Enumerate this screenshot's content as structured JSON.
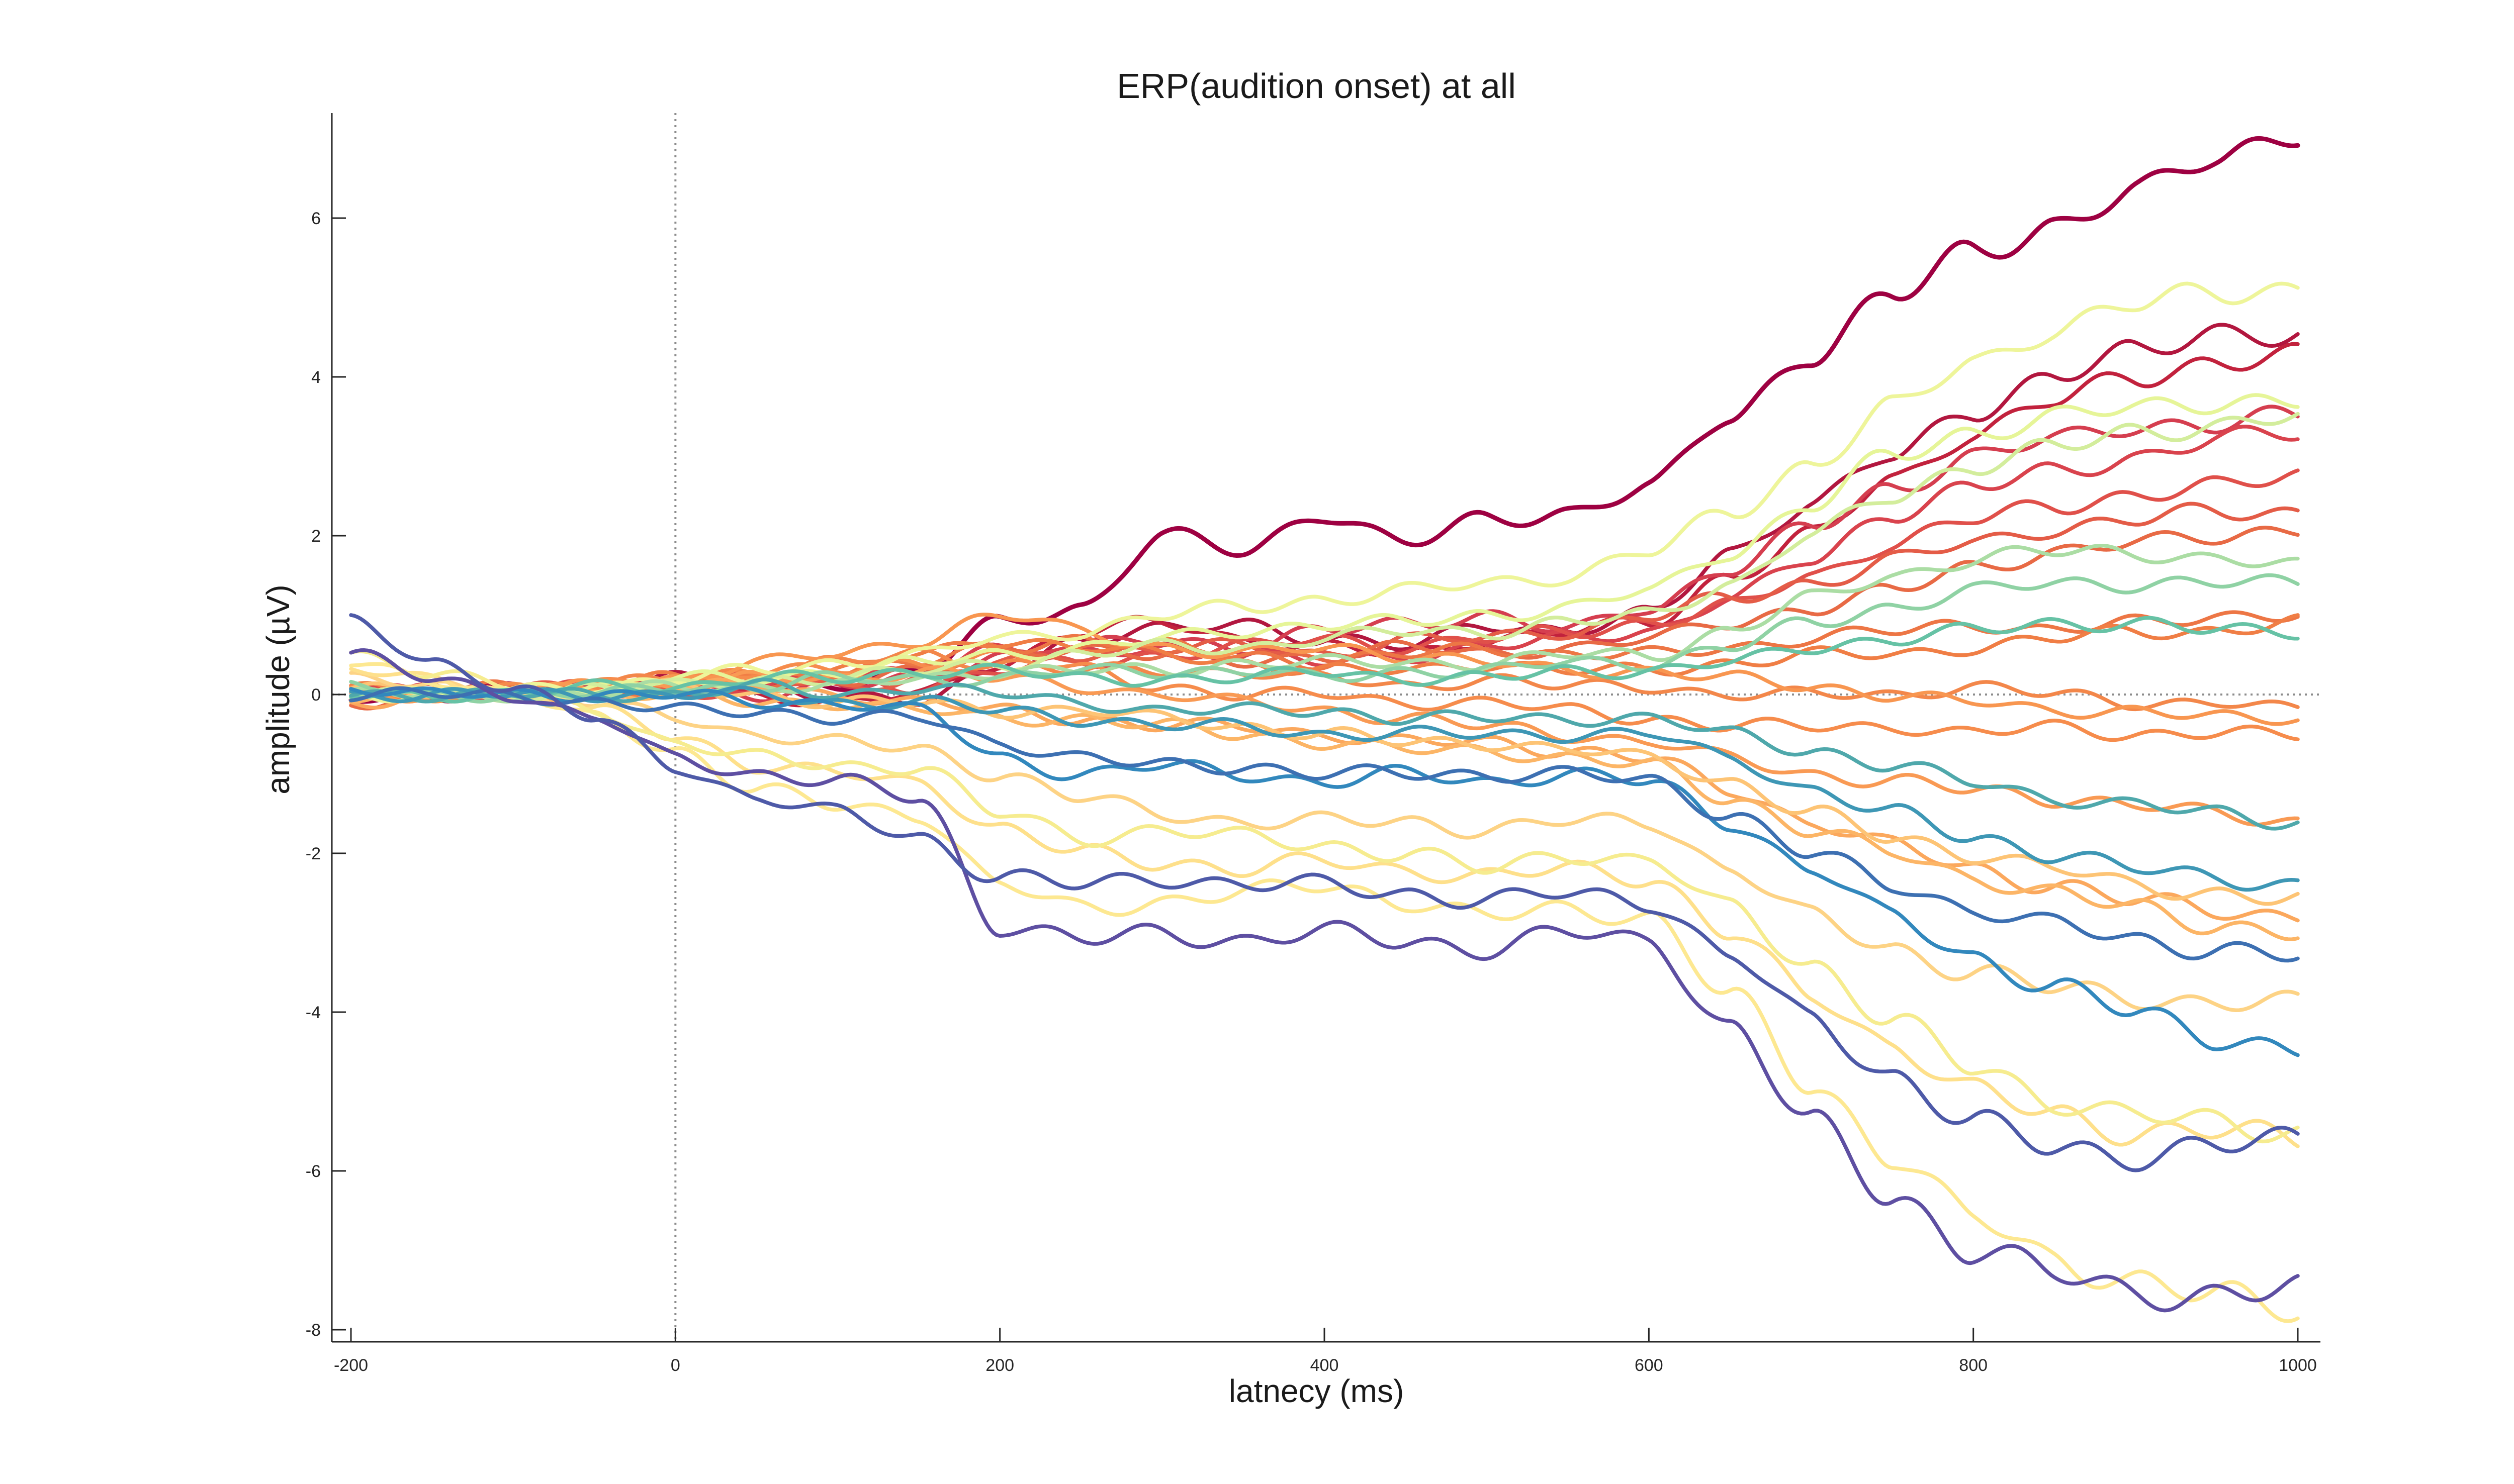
{
  "chart_data": {
    "type": "line",
    "title": "ERP(audition onset) at all",
    "xlabel": "latnecy (ms)",
    "ylabel": "amplitude (µV)",
    "xlim": [
      -200,
      1000
    ],
    "ylim": [
      -8,
      7.3
    ],
    "xticks": [
      -200,
      0,
      200,
      400,
      600,
      800,
      1000
    ],
    "yticks": [
      -8,
      -6,
      -4,
      -2,
      0,
      2,
      4,
      6
    ],
    "grid": false,
    "legend": "none",
    "reference_lines": {
      "x": 0,
      "y": 0,
      "style": "dotted",
      "color": "#8c8c8c"
    },
    "x": [
      -200,
      -150,
      -100,
      -50,
      0,
      50,
      100,
      150,
      200,
      250,
      300,
      350,
      400,
      450,
      500,
      550,
      600,
      650,
      700,
      750,
      800,
      850,
      900,
      950,
      1000
    ],
    "series": [
      {
        "color": "#9e0142",
        "values": [
          0.0,
          -0.05,
          0.05,
          0.1,
          0.2,
          0.1,
          0.15,
          0.3,
          0.9,
          1.1,
          2.0,
          1.8,
          2.3,
          1.9,
          2.2,
          2.3,
          2.6,
          3.5,
          4.3,
          5.0,
          5.6,
          5.9,
          6.3,
          6.8,
          7.1
        ]
      },
      {
        "color": "#b2173f",
        "values": [
          0.0,
          0.0,
          0.05,
          0.1,
          0.2,
          0.1,
          0.0,
          -0.1,
          0.3,
          0.7,
          0.8,
          0.9,
          0.7,
          0.6,
          0.9,
          0.8,
          1.0,
          1.8,
          2.4,
          3.0,
          3.6,
          4.0,
          4.3,
          4.6,
          4.5
        ]
      },
      {
        "color": "#c2223d",
        "values": [
          -0.1,
          0.0,
          0.0,
          0.1,
          0.1,
          0.0,
          -0.1,
          0.0,
          0.4,
          0.8,
          0.9,
          0.7,
          0.6,
          0.5,
          0.7,
          0.8,
          0.9,
          1.5,
          2.0,
          2.7,
          3.3,
          3.7,
          4.0,
          4.2,
          4.25
        ]
      },
      {
        "color": "#d53e4f",
        "values": [
          0.0,
          0.05,
          0.0,
          0.05,
          0.1,
          0.0,
          0.1,
          0.2,
          0.5,
          0.6,
          0.7,
          0.6,
          0.8,
          0.9,
          1.0,
          0.8,
          1.1,
          1.6,
          2.1,
          2.6,
          3.0,
          3.2,
          3.4,
          3.4,
          3.5
        ]
      },
      {
        "color": "#d9434d",
        "values": [
          0.1,
          0.0,
          0.05,
          0.0,
          0.2,
          0.1,
          0.2,
          0.3,
          0.6,
          0.5,
          0.6,
          0.5,
          0.4,
          0.5,
          0.6,
          0.7,
          0.8,
          1.2,
          1.7,
          2.3,
          2.6,
          2.8,
          3.0,
          3.2,
          3.3
        ]
      },
      {
        "color": "#e0504a",
        "values": [
          0.0,
          0.0,
          0.0,
          0.1,
          0.0,
          0.1,
          0.2,
          0.1,
          0.3,
          0.4,
          0.5,
          0.6,
          0.7,
          0.6,
          0.7,
          0.8,
          0.9,
          1.1,
          1.5,
          1.9,
          2.2,
          2.4,
          2.5,
          2.6,
          2.8
        ]
      },
      {
        "color": "#e45c47",
        "values": [
          0.0,
          0.0,
          0.05,
          0.1,
          0.1,
          0.2,
          0.1,
          0.2,
          0.4,
          0.5,
          0.6,
          0.6,
          0.5,
          0.7,
          0.7,
          0.8,
          1.0,
          1.2,
          1.4,
          1.7,
          1.9,
          2.1,
          2.2,
          2.3,
          2.3
        ]
      },
      {
        "color": "#e86a45",
        "values": [
          -0.1,
          0.0,
          0.0,
          0.1,
          0.1,
          0.1,
          0.2,
          0.3,
          0.5,
          0.6,
          0.5,
          0.4,
          0.5,
          0.6,
          0.5,
          0.6,
          0.7,
          0.9,
          1.1,
          1.3,
          1.6,
          1.8,
          1.9,
          2.0,
          2.1
        ]
      },
      {
        "color": "#ed7645",
        "values": [
          0.0,
          0.0,
          0.1,
          0.0,
          0.1,
          0.2,
          0.3,
          0.4,
          0.6,
          0.7,
          0.6,
          0.5,
          0.4,
          0.5,
          0.6,
          0.5,
          0.5,
          0.6,
          0.7,
          0.8,
          0.9,
          0.8,
          0.9,
          1.0,
          1.0
        ]
      },
      {
        "color": "#f07e45",
        "values": [
          0.1,
          0.0,
          0.0,
          0.1,
          0.2,
          0.2,
          0.3,
          0.5,
          0.7,
          0.6,
          0.5,
          0.4,
          0.3,
          0.3,
          0.4,
          0.3,
          0.3,
          0.4,
          0.5,
          0.5,
          0.6,
          0.7,
          0.8,
          0.8,
          0.9
        ]
      },
      {
        "color": "#f3874a",
        "values": [
          0.0,
          0.0,
          0.1,
          0.1,
          0.2,
          0.3,
          0.4,
          0.5,
          0.4,
          0.3,
          0.3,
          0.3,
          0.2,
          0.1,
          0.2,
          0.1,
          0.1,
          0.0,
          0.0,
          0.0,
          0.1,
          0.0,
          -0.1,
          -0.1,
          -0.2
        ]
      },
      {
        "color": "#f68c4c",
        "values": [
          0.0,
          0.0,
          0.1,
          0.1,
          0.2,
          0.3,
          0.3,
          0.4,
          0.5,
          0.3,
          0.1,
          0.0,
          0.0,
          -0.1,
          -0.1,
          -0.2,
          -0.3,
          -0.4,
          -0.4,
          -0.4,
          -0.5,
          -0.4,
          -0.5,
          -0.5,
          -0.5
        ]
      },
      {
        "color": "#f89650",
        "values": [
          0.1,
          0.0,
          0.0,
          0.1,
          0.2,
          0.4,
          0.5,
          0.7,
          1.0,
          0.8,
          0.6,
          0.5,
          0.6,
          0.5,
          0.4,
          0.3,
          0.3,
          0.2,
          0.1,
          0.0,
          -0.1,
          -0.2,
          -0.2,
          -0.3,
          -0.3
        ]
      },
      {
        "color": "#f99a54",
        "values": [
          0.0,
          0.0,
          0.0,
          0.1,
          0.1,
          0.2,
          0.2,
          0.3,
          0.2,
          0.1,
          0.0,
          -0.1,
          -0.2,
          -0.3,
          -0.4,
          -0.5,
          -0.6,
          -0.8,
          -1.0,
          -1.1,
          -1.2,
          -1.3,
          -1.4,
          -1.5,
          -1.6
        ]
      },
      {
        "color": "#fba85d",
        "values": [
          -0.1,
          0.0,
          0.0,
          0.0,
          0.1,
          0.1,
          0.0,
          -0.1,
          -0.2,
          -0.3,
          -0.4,
          -0.4,
          -0.5,
          -0.6,
          -0.6,
          -0.7,
          -0.8,
          -1.2,
          -1.6,
          -1.9,
          -2.2,
          -2.4,
          -2.6,
          -2.7,
          -2.8
        ]
      },
      {
        "color": "#fcb566",
        "values": [
          0.0,
          0.0,
          0.0,
          0.0,
          0.0,
          -0.1,
          -0.1,
          -0.2,
          -0.3,
          -0.3,
          -0.4,
          -0.5,
          -0.6,
          -0.7,
          -0.7,
          -0.8,
          -0.9,
          -1.3,
          -1.7,
          -2.0,
          -2.3,
          -2.5,
          -2.7,
          -2.9,
          -3.0
        ]
      },
      {
        "color": "#fdc475",
        "values": [
          0.1,
          0.0,
          0.0,
          0.0,
          0.1,
          0.0,
          -0.1,
          -0.1,
          -0.2,
          -0.2,
          -0.3,
          -0.4,
          -0.5,
          -0.6,
          -0.6,
          -0.7,
          -0.8,
          -1.1,
          -1.5,
          -1.8,
          -2.0,
          -2.2,
          -2.4,
          -2.5,
          -2.6
        ]
      },
      {
        "color": "#fdd385",
        "values": [
          0.2,
          0.1,
          0.0,
          -0.1,
          -0.3,
          -0.5,
          -0.6,
          -0.7,
          -1.0,
          -1.3,
          -1.5,
          -1.6,
          -1.6,
          -1.6,
          -1.7,
          -1.6,
          -1.6,
          -2.2,
          -2.8,
          -3.2,
          -3.5,
          -3.7,
          -3.8,
          -3.9,
          -3.9
        ]
      },
      {
        "color": "#fee08b",
        "values": [
          0.3,
          0.2,
          0.0,
          -0.2,
          -0.5,
          -0.9,
          -1.0,
          -1.1,
          -1.7,
          -2.0,
          -2.1,
          -2.2,
          -2.1,
          -2.2,
          -2.3,
          -2.2,
          -2.3,
          -3.0,
          -3.8,
          -4.4,
          -5.0,
          -5.3,
          -5.5,
          -5.5,
          -5.6
        ]
      },
      {
        "color": "#fde891",
        "values": [
          0.4,
          0.2,
          0.0,
          -0.3,
          -0.7,
          -1.2,
          -1.4,
          -1.5,
          -2.4,
          -2.7,
          -2.6,
          -2.5,
          -2.4,
          -2.6,
          -2.8,
          -2.7,
          -2.8,
          -3.8,
          -4.9,
          -5.8,
          -6.6,
          -7.1,
          -7.4,
          -7.6,
          -7.7
        ]
      },
      {
        "color": "#f6ec8f",
        "values": [
          0.5,
          0.3,
          0.1,
          -0.2,
          -0.6,
          -0.8,
          -0.9,
          -0.9,
          -1.5,
          -1.8,
          -1.7,
          -1.8,
          -1.9,
          -2.0,
          -2.2,
          -2.0,
          -2.1,
          -2.7,
          -3.4,
          -4.1,
          -4.7,
          -5.1,
          -5.3,
          -5.4,
          -5.5
        ]
      },
      {
        "color": "#eef59a",
        "values": [
          0.0,
          0.0,
          0.05,
          0.1,
          0.2,
          0.3,
          0.4,
          0.5,
          0.7,
          0.8,
          1.0,
          1.1,
          1.2,
          1.3,
          1.4,
          1.5,
          1.8,
          2.3,
          2.9,
          3.6,
          4.2,
          4.6,
          4.9,
          5.1,
          5.1
        ]
      },
      {
        "color": "#e6f598",
        "values": [
          0.1,
          0.0,
          0.0,
          0.1,
          0.2,
          0.2,
          0.3,
          0.4,
          0.5,
          0.6,
          0.7,
          0.8,
          0.9,
          0.9,
          1.0,
          1.1,
          1.3,
          1.8,
          2.4,
          3.0,
          3.3,
          3.5,
          3.6,
          3.7,
          3.7
        ]
      },
      {
        "color": "#d3ed9c",
        "values": [
          0.0,
          0.0,
          0.0,
          0.1,
          0.1,
          0.2,
          0.2,
          0.3,
          0.4,
          0.5,
          0.6,
          0.6,
          0.7,
          0.8,
          0.8,
          0.9,
          1.0,
          1.4,
          2.0,
          2.5,
          2.9,
          3.1,
          3.3,
          3.4,
          3.5
        ]
      },
      {
        "color": "#abdda4",
        "values": [
          0.0,
          0.0,
          0.0,
          0.0,
          0.1,
          0.1,
          0.1,
          0.2,
          0.3,
          0.3,
          0.3,
          0.4,
          0.4,
          0.4,
          0.4,
          0.5,
          0.5,
          0.8,
          1.2,
          1.5,
          1.7,
          1.8,
          1.8,
          1.7,
          1.6
        ]
      },
      {
        "color": "#8fd2a4",
        "values": [
          0.1,
          0.0,
          0.0,
          0.0,
          0.1,
          0.1,
          0.2,
          0.2,
          0.2,
          0.3,
          0.3,
          0.3,
          0.2,
          0.3,
          0.3,
          0.4,
          0.4,
          0.6,
          0.9,
          1.1,
          1.3,
          1.4,
          1.4,
          1.4,
          1.4
        ]
      },
      {
        "color": "#66c2a5",
        "values": [
          0.0,
          0.0,
          0.0,
          0.1,
          0.1,
          0.2,
          0.2,
          0.3,
          0.3,
          0.2,
          0.2,
          0.2,
          0.3,
          0.2,
          0.2,
          0.3,
          0.3,
          0.4,
          0.6,
          0.7,
          0.8,
          0.9,
          0.9,
          0.8,
          0.8
        ]
      },
      {
        "color": "#4fa8ab",
        "values": [
          0.0,
          0.0,
          0.0,
          0.0,
          0.0,
          0.1,
          0.0,
          0.1,
          0.0,
          -0.1,
          -0.2,
          -0.2,
          -0.2,
          -0.3,
          -0.3,
          -0.3,
          -0.3,
          -0.5,
          -0.7,
          -0.9,
          -1.1,
          -1.3,
          -1.4,
          -1.5,
          -1.6
        ]
      },
      {
        "color": "#3e97b5",
        "values": [
          0.0,
          0.0,
          0.0,
          0.0,
          0.0,
          0.0,
          -0.1,
          -0.1,
          -0.2,
          -0.3,
          -0.4,
          -0.4,
          -0.5,
          -0.5,
          -0.5,
          -0.5,
          -0.5,
          -0.8,
          -1.2,
          -1.5,
          -1.8,
          -2.0,
          -2.2,
          -2.3,
          -2.4
        ]
      },
      {
        "color": "#3288bd",
        "values": [
          0.1,
          0.0,
          0.0,
          0.0,
          0.0,
          -0.1,
          -0.1,
          -0.2,
          -0.8,
          -1.0,
          -0.9,
          -1.0,
          -1.1,
          -1.0,
          -1.1,
          -1.0,
          -1.1,
          -1.6,
          -2.2,
          -2.8,
          -3.3,
          -3.7,
          -4.0,
          -4.3,
          -4.5
        ]
      },
      {
        "color": "#3d70b2",
        "values": [
          0.0,
          0.0,
          0.0,
          -0.1,
          -0.2,
          -0.2,
          -0.3,
          -0.3,
          -0.6,
          -0.8,
          -0.9,
          -0.9,
          -1.0,
          -1.0,
          -1.0,
          -1.0,
          -1.1,
          -1.5,
          -2.0,
          -2.4,
          -2.7,
          -2.9,
          -3.1,
          -3.2,
          -3.3
        ]
      },
      {
        "color": "#5e4fa2",
        "values": [
          0.5,
          0.2,
          0.0,
          -0.3,
          -0.8,
          -1.0,
          -1.1,
          -1.3,
          -2.9,
          -3.1,
          -3.0,
          -3.1,
          -3.0,
          -3.1,
          -3.2,
          -3.0,
          -3.1,
          -4.2,
          -5.4,
          -6.3,
          -7.0,
          -7.3,
          -7.5,
          -7.6,
          -7.5
        ]
      },
      {
        "color": "#4e5aa8",
        "values": [
          0.9,
          0.4,
          0.1,
          -0.3,
          -0.9,
          -1.3,
          -1.5,
          -1.8,
          -2.3,
          -2.4,
          -2.3,
          -2.4,
          -2.4,
          -2.5,
          -2.6,
          -2.5,
          -2.6,
          -3.3,
          -4.1,
          -4.8,
          -5.4,
          -5.7,
          -5.8,
          -5.7,
          -5.6
        ]
      }
    ]
  }
}
